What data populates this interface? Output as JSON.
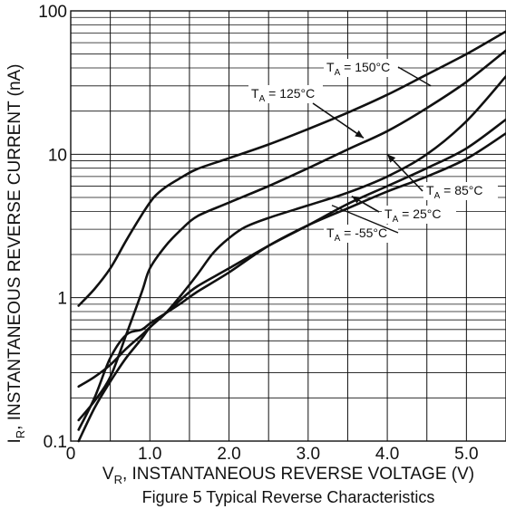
{
  "chart_data": {
    "type": "line",
    "title": "Figure 5 Typical Reverse Characteristics",
    "xlabel": "V_R, INSTANTANEOUS REVERSE VOLTAGE (V)",
    "ylabel": "I_R, INSTANTANEOUS REVERSE CURRENT (nA)",
    "x_axis": {
      "label_main": "V",
      "label_sub": "R",
      "label_rest": ", INSTANTANEOUS REVERSE VOLTAGE (V)",
      "range": [
        0,
        5.5
      ],
      "scale": "linear",
      "tick_values": [
        0,
        1,
        2,
        3,
        4,
        5
      ],
      "tick_labels": [
        "0",
        "1.0",
        "2.0",
        "3.0",
        "4.0",
        "5.0"
      ]
    },
    "y_axis": {
      "label_main": "I",
      "label_sub": "R",
      "label_rest": ", INSTANTANEOUS REVERSE CURRENT (nA)",
      "range": [
        0.1,
        100
      ],
      "scale": "log",
      "tick_values": [
        0.1,
        1,
        10,
        100
      ],
      "tick_labels": [
        "0.1",
        "1",
        "10",
        "100"
      ]
    },
    "grid": true,
    "series": [
      {
        "name": "T_A = 150°C",
        "label_main": "T",
        "label_sub": "A",
        "label_rest": " = 150°C",
        "x": [
          0.1,
          0.3,
          0.5,
          0.7,
          0.9,
          1.05,
          1.2,
          1.4,
          1.6,
          2.0,
          2.5,
          3.0,
          3.5,
          4.0,
          4.5,
          5.0,
          5.5
        ],
        "y": [
          0.88,
          1.15,
          1.6,
          2.5,
          3.8,
          5.0,
          5.9,
          6.9,
          7.9,
          9.4,
          11.7,
          15.0,
          19.5,
          26.0,
          36.0,
          50.0,
          72.0
        ]
      },
      {
        "name": "T_A = 125°C",
        "label_main": "T",
        "label_sub": "A",
        "label_rest": " = 125°C",
        "x": [
          0.1,
          0.3,
          0.5,
          0.7,
          0.9,
          1.0,
          1.2,
          1.4,
          1.6,
          2.0,
          2.5,
          3.0,
          3.5,
          4.0,
          4.5,
          5.0,
          5.5
        ],
        "y": [
          0.14,
          0.19,
          0.28,
          0.55,
          1.1,
          1.6,
          2.3,
          3.0,
          3.7,
          4.6,
          6.0,
          8.0,
          10.8,
          14.5,
          21.0,
          32.0,
          53.0
        ]
      },
      {
        "name": "T_A = 85°C",
        "label_main": "T",
        "label_sub": "A",
        "label_rest": " = 85°C",
        "x": [
          0.1,
          0.3,
          0.5,
          0.7,
          0.9,
          1.0,
          1.2,
          1.4,
          1.6,
          1.8,
          2.0,
          2.2,
          2.5,
          3.0,
          3.5,
          4.0,
          4.5,
          5.0,
          5.5
        ],
        "y": [
          0.1,
          0.17,
          0.26,
          0.38,
          0.52,
          0.62,
          0.78,
          1.05,
          1.45,
          2.05,
          2.6,
          3.1,
          3.6,
          4.4,
          5.4,
          7.0,
          10.0,
          17.0,
          35.0
        ]
      },
      {
        "name": "T_A = 25°C",
        "label_main": "T",
        "label_sub": "A",
        "label_rest": " = 25°C",
        "x": [
          0.1,
          0.3,
          0.5,
          0.7,
          0.9,
          1.0,
          1.2,
          1.4,
          1.6,
          2.0,
          2.5,
          3.0,
          3.5,
          4.0,
          4.5,
          5.0,
          5.5
        ],
        "y": [
          0.12,
          0.2,
          0.38,
          0.55,
          0.6,
          0.66,
          0.78,
          0.92,
          1.1,
          1.5,
          2.3,
          3.2,
          4.2,
          5.5,
          7.0,
          9.3,
          14.0
        ]
      },
      {
        "name": "T_A = -55°C",
        "label_main": "T",
        "label_sub": "A",
        "label_rest": " = -55°C",
        "x": [
          0.1,
          0.3,
          0.5,
          0.7,
          0.9,
          1.0,
          1.2,
          1.4,
          1.6,
          2.0,
          2.5,
          3.0,
          3.5,
          4.0,
          4.5,
          5.0,
          5.5
        ],
        "y": [
          0.24,
          0.28,
          0.34,
          0.44,
          0.55,
          0.62,
          0.78,
          0.98,
          1.2,
          1.6,
          2.3,
          3.2,
          4.5,
          6.0,
          8.0,
          11.0,
          17.5
        ]
      }
    ],
    "annotations": [
      {
        "series": "T_A = 150°C",
        "arrow_to": [
          4.55,
          30.0
        ]
      },
      {
        "series": "T_A = 125°C",
        "arrow_to": [
          3.7,
          13.0
        ]
      },
      {
        "series": "T_A = 85°C",
        "arrow_to": [
          4.0,
          10.0
        ]
      },
      {
        "series": "T_A = 25°C",
        "arrow_to": [
          3.55,
          5.1
        ]
      },
      {
        "series": "T_A = -55°C",
        "arrow_to": [
          3.3,
          4.4
        ]
      }
    ]
  }
}
